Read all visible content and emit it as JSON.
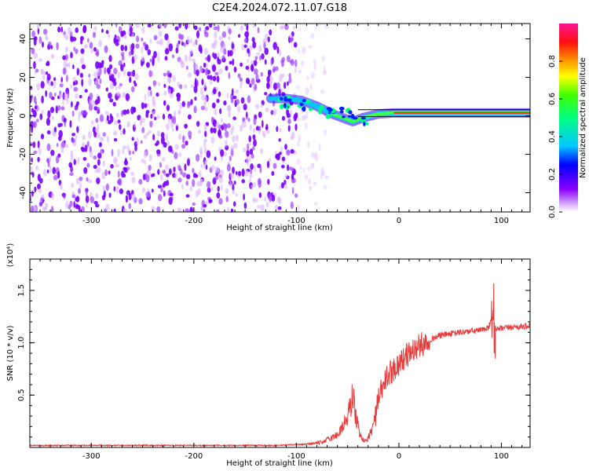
{
  "title": "C2E4.2024.072.11.07.G18",
  "chart_data": [
    {
      "type": "heatmap",
      "xlabel": "Height of straight line (km)",
      "ylabel": "Frequency (Hz)",
      "xlim": [
        -360,
        128
      ],
      "ylim": [
        -50,
        48
      ],
      "xticks": [
        -300,
        -200,
        -100,
        0,
        100
      ],
      "yticks": [
        -40,
        -20,
        0,
        20,
        40
      ],
      "colorbar": {
        "label": "Normalized spectral amplitude",
        "range": [
          0.0,
          1.0
        ],
        "ticks": [
          "0.0",
          "0.2",
          "0.4",
          "0.6",
          "0.8"
        ],
        "colors": [
          "#ffffff",
          "#cc88ff",
          "#7a00ff",
          "#0000ff",
          "#00d0ff",
          "#00ff40",
          "#ffff00",
          "#ff6000",
          "#ff0000",
          "#ff1493"
        ]
      },
      "features": {
        "noise_region_x": [
          -360,
          -100
        ],
        "signal_trace": [
          {
            "x": -125,
            "f": 9
          },
          {
            "x": -110,
            "f": 9
          },
          {
            "x": -95,
            "f": 8
          },
          {
            "x": -80,
            "f": 5
          },
          {
            "x": -65,
            "f": 1
          },
          {
            "x": -55,
            "f": -1
          },
          {
            "x": -45,
            "f": -3
          },
          {
            "x": -35,
            "f": -1
          },
          {
            "x": -20,
            "f": 1
          },
          {
            "x": -5,
            "f": 1.5
          },
          {
            "x": 20,
            "f": 1.5
          },
          {
            "x": 60,
            "f": 1.5
          },
          {
            "x": 90,
            "f": 1.5
          },
          {
            "x": 128,
            "f": 1.5
          }
        ]
      }
    },
    {
      "type": "line",
      "xlabel": "Height of straight line (km)",
      "ylabel": "SNR (10 * v/v)",
      "yscale_note": "(x10⁴)",
      "xlim": [
        -360,
        128
      ],
      "ylim": [
        0,
        1.8
      ],
      "xticks": [
        -300,
        -200,
        -100,
        0,
        100
      ],
      "yticks": [
        0.5,
        1.0,
        1.5
      ],
      "ytick_labels": [
        "0.5",
        "1.0",
        "1.5"
      ],
      "color": "#e83c3c",
      "series": [
        {
          "x": [
            -360,
            -300,
            -200,
            -120,
            -90,
            -75,
            -60,
            -50,
            -45,
            -42,
            -38,
            -32,
            -25,
            -20,
            -15,
            -10,
            -5,
            0,
            5,
            10,
            20,
            30,
            40,
            60,
            80,
            88,
            91,
            93,
            96,
            110,
            128
          ],
          "y": [
            0.02,
            0.02,
            0.02,
            0.02,
            0.03,
            0.05,
            0.12,
            0.28,
            0.5,
            0.3,
            0.12,
            0.05,
            0.2,
            0.45,
            0.6,
            0.7,
            0.75,
            0.8,
            0.85,
            0.9,
            0.97,
            1.03,
            1.07,
            1.1,
            1.12,
            1.15,
            1.3,
            1.14,
            1.13,
            1.15,
            1.16
          ]
        }
      ]
    }
  ]
}
